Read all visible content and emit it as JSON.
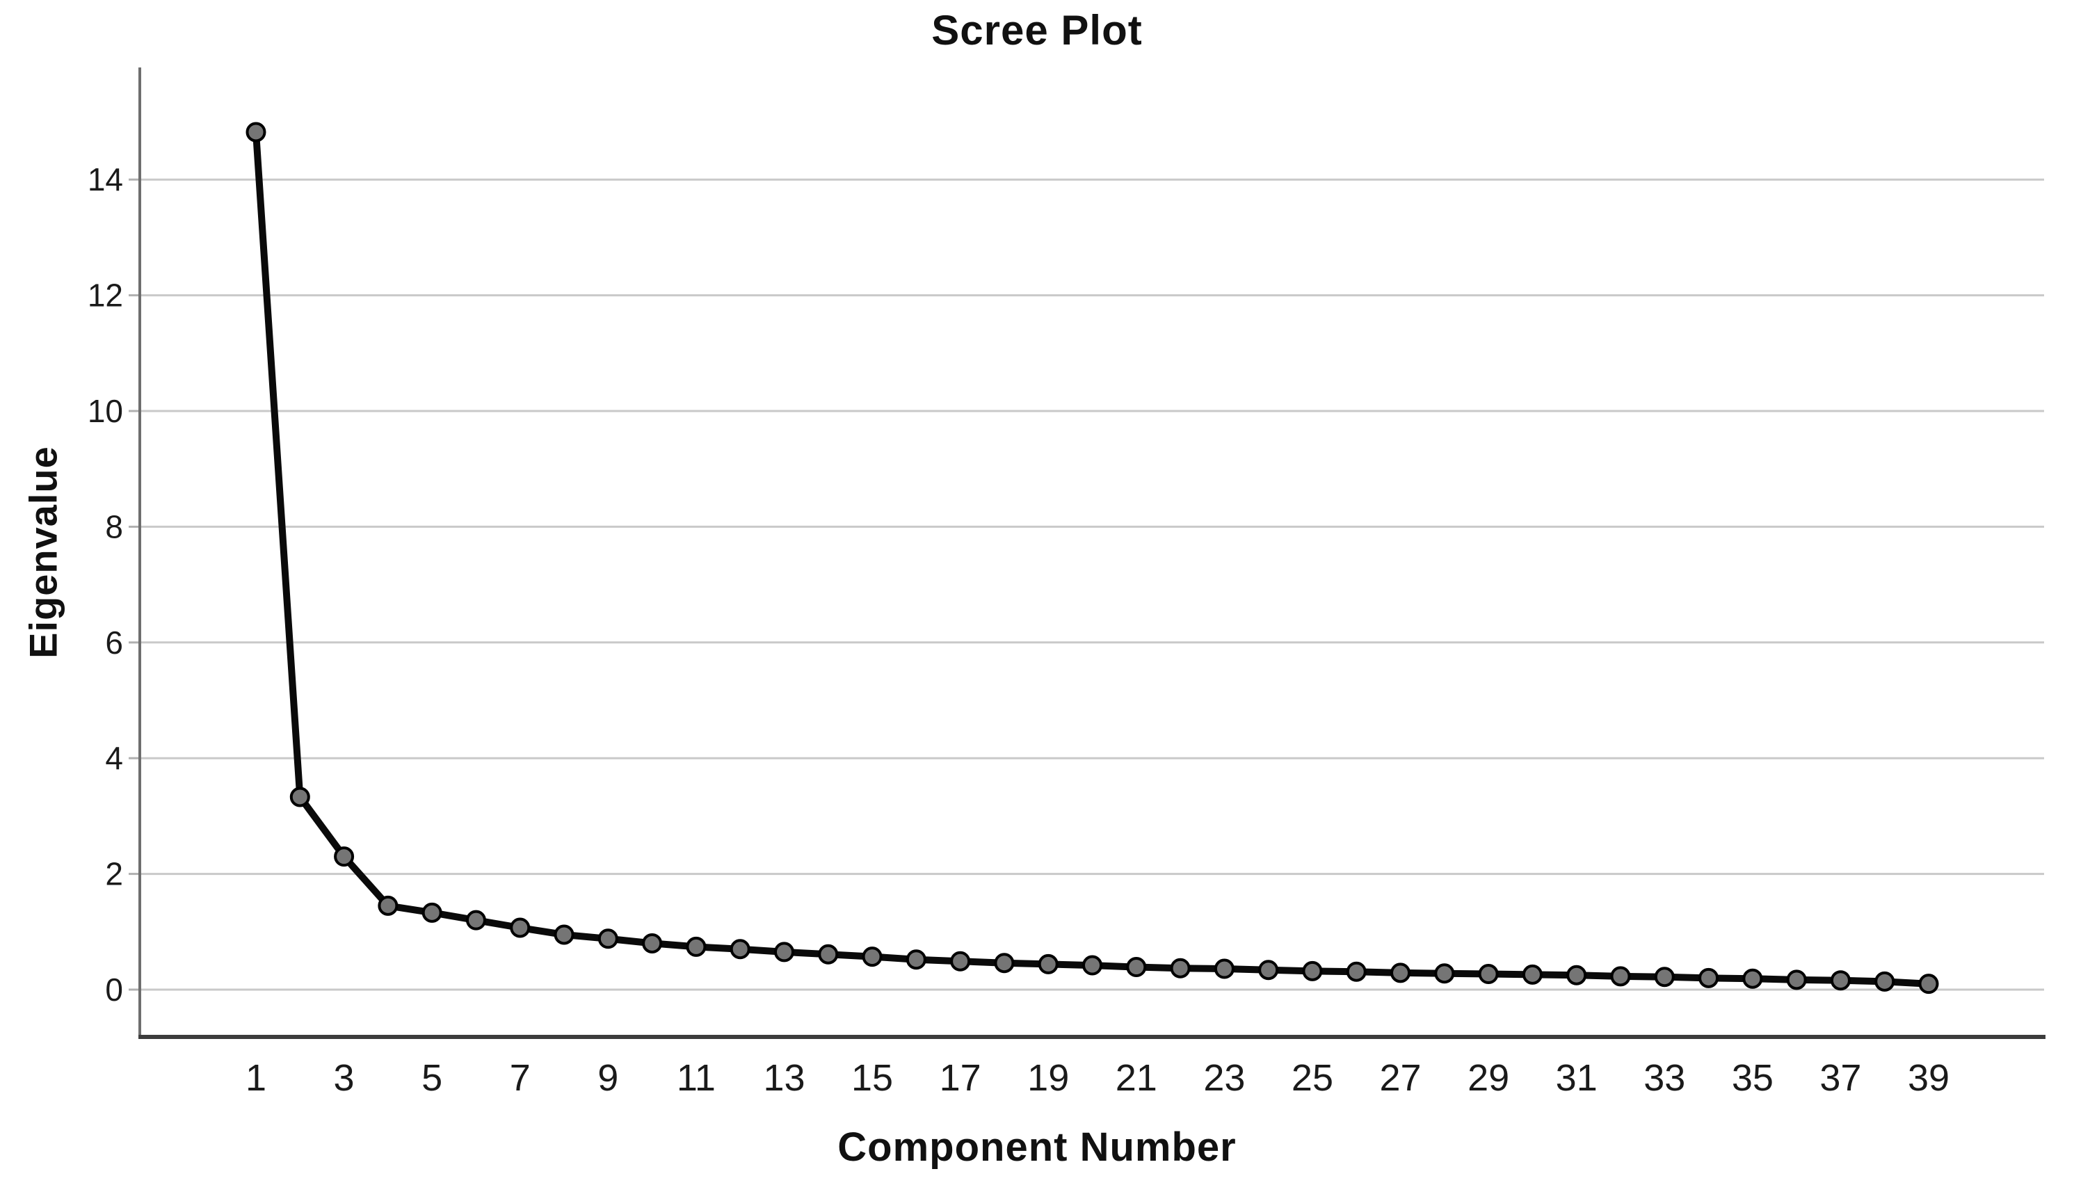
{
  "figure": {
    "background": "#ffffff"
  },
  "chart_data": {
    "type": "line",
    "title": "Scree Plot",
    "xlabel": "Component Number",
    "ylabel": "Eigenvalue",
    "x": [
      1,
      2,
      3,
      4,
      5,
      6,
      7,
      8,
      9,
      10,
      11,
      12,
      13,
      14,
      15,
      16,
      17,
      18,
      19,
      20,
      21,
      22,
      23,
      24,
      25,
      26,
      27,
      28,
      29,
      30,
      31,
      32,
      33,
      34,
      35,
      36,
      37,
      38,
      39
    ],
    "values": [
      14.82,
      3.33,
      2.3,
      1.45,
      1.33,
      1.2,
      1.07,
      0.95,
      0.88,
      0.8,
      0.74,
      0.7,
      0.65,
      0.61,
      0.57,
      0.52,
      0.49,
      0.46,
      0.44,
      0.42,
      0.39,
      0.37,
      0.36,
      0.34,
      0.32,
      0.31,
      0.29,
      0.28,
      0.27,
      0.26,
      0.25,
      0.23,
      0.22,
      0.2,
      0.19,
      0.17,
      0.16,
      0.14,
      0.1
    ],
    "x_tick_labels": [
      "1",
      "3",
      "5",
      "7",
      "9",
      "11",
      "13",
      "15",
      "17",
      "19",
      "21",
      "23",
      "25",
      "27",
      "29",
      "31",
      "33",
      "35",
      "37",
      "39"
    ],
    "y_tick_labels": [
      "0",
      "2",
      "4",
      "6",
      "8",
      "10",
      "12",
      "14"
    ],
    "xlim": [
      -1.6,
      41.6
    ],
    "ylim": [
      -0.8,
      15.9
    ],
    "grid": "horizontal",
    "legend": "none",
    "series_name": "Eigenvalue",
    "colors": {
      "line": "#0a0a0a",
      "marker_fill": "#757575",
      "marker_stroke": "#000000",
      "gridline": "#c9c9c9",
      "y_axis": "#6e6e6e",
      "x_axis": "#3c3c3c",
      "tick": "#b0b0b0",
      "text": "#1a1a1a"
    }
  }
}
